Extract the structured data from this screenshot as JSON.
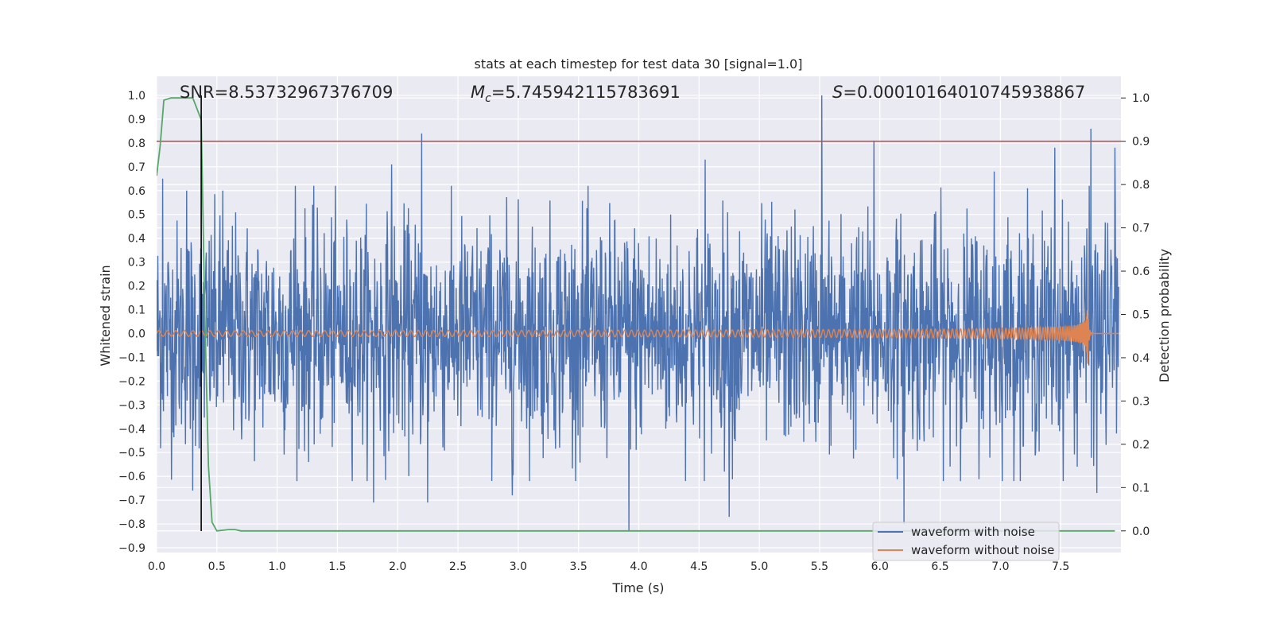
{
  "chart_data": {
    "type": "line",
    "title": "stats at each timestep for test data 30 [signal=1.0]",
    "xlabel": "Time (s)",
    "ylabel_left": "Whitened strain",
    "ylabel_right": "Detection probability",
    "xlim": [
      0.0,
      8.0
    ],
    "ylim_left": [
      -0.92,
      1.08
    ],
    "ylim_right": [
      -0.05,
      1.05
    ],
    "x_ticks": [
      0.0,
      0.5,
      1.0,
      1.5,
      2.0,
      2.5,
      3.0,
      3.5,
      4.0,
      4.5,
      5.0,
      5.5,
      6.0,
      6.5,
      7.0,
      7.5
    ],
    "x_tick_labels": [
      "0.0",
      "0.5",
      "1.0",
      "1.5",
      "2.0",
      "2.5",
      "3.0",
      "3.5",
      "4.0",
      "4.5",
      "5.0",
      "5.5",
      "6.0",
      "6.5",
      "7.0",
      "7.5"
    ],
    "y_ticks_left": [
      -0.9,
      -0.8,
      -0.7,
      -0.6,
      -0.5,
      -0.4,
      -0.3,
      -0.2,
      -0.1,
      0.0,
      0.1,
      0.2,
      0.3,
      0.4,
      0.5,
      0.6,
      0.7,
      0.8,
      0.9,
      1.0
    ],
    "y_tick_labels_left": [
      "−0.9",
      "−0.8",
      "−0.7",
      "−0.6",
      "−0.5",
      "−0.4",
      "−0.3",
      "−0.2",
      "−0.1",
      "0.0",
      "0.1",
      "0.2",
      "0.3",
      "0.4",
      "0.5",
      "0.6",
      "0.7",
      "0.8",
      "0.9",
      "1.0"
    ],
    "y_ticks_right": [
      0.0,
      0.1,
      0.2,
      0.3,
      0.4,
      0.5,
      0.6,
      0.7,
      0.8,
      0.9,
      1.0
    ],
    "y_tick_labels_right": [
      "0.0",
      "0.1",
      "0.2",
      "0.3",
      "0.4",
      "0.5",
      "0.6",
      "0.7",
      "0.8",
      "0.9",
      "1.0"
    ],
    "grid": true,
    "annotations": {
      "snr": "SNR=8.53732967376709",
      "mc_symbol": "M",
      "mc_sub": "c",
      "mc_value": "=5.745942115783691",
      "s_symbol": "S",
      "s_value": "=0.00010164010745938867"
    },
    "series": [
      {
        "name": "waveform with noise",
        "axis": "left",
        "color": "#4c72b0",
        "kind": "noise",
        "typical_amplitude": 0.3,
        "peaks": [
          {
            "x": 0.05,
            "y": 0.65
          },
          {
            "x": 0.25,
            "y": 0.6
          },
          {
            "x": 0.3,
            "y": 0.68
          },
          {
            "x": 0.55,
            "y": 0.6
          },
          {
            "x": 1.15,
            "y": 0.62
          },
          {
            "x": 1.95,
            "y": 0.71
          },
          {
            "x": 2.2,
            "y": 0.84
          },
          {
            "x": 2.25,
            "y": 0.75
          },
          {
            "x": 3.92,
            "y": 0.81
          },
          {
            "x": 4.55,
            "y": 0.73
          },
          {
            "x": 5.52,
            "y": 1.0
          },
          {
            "x": 5.95,
            "y": 0.81
          },
          {
            "x": 6.2,
            "y": 0.82
          },
          {
            "x": 6.95,
            "y": 0.68
          },
          {
            "x": 7.45,
            "y": 0.78
          },
          {
            "x": 7.75,
            "y": 0.86
          },
          {
            "x": 7.95,
            "y": 0.78
          },
          {
            "x": 0.3,
            "y": -0.66
          },
          {
            "x": 1.8,
            "y": -0.71
          },
          {
            "x": 2.25,
            "y": -0.71
          },
          {
            "x": 2.95,
            "y": -0.68
          },
          {
            "x": 3.92,
            "y": -0.83
          },
          {
            "x": 4.75,
            "y": -0.77
          },
          {
            "x": 6.2,
            "y": -0.8
          },
          {
            "x": 7.8,
            "y": -0.67
          }
        ]
      },
      {
        "name": "waveform without noise",
        "axis": "left",
        "color": "#dd8452",
        "kind": "chirp",
        "coalescence_time": 7.72,
        "start_amplitude": 0.012,
        "peak_amplitude": 0.22
      },
      {
        "name": "detection probability",
        "axis": "right",
        "color": "#55a868",
        "x": [
          0.0,
          0.03,
          0.06,
          0.12,
          0.2,
          0.3,
          0.37,
          0.4,
          0.43,
          0.46,
          0.5,
          0.6,
          0.65,
          0.7,
          0.8,
          7.95
        ],
        "y": [
          0.82,
          0.89,
          0.995,
          1.0,
          1.0,
          1.0,
          0.95,
          0.5,
          0.15,
          0.02,
          0.0,
          0.003,
          0.003,
          0.0,
          0.0,
          0.0
        ]
      }
    ],
    "threshold": {
      "axis": "right",
      "value": 0.9,
      "color": "#c44e52"
    },
    "marker_line": {
      "x": 0.37,
      "y_from": -0.83,
      "y_to": 1.0,
      "color": "#000000"
    },
    "legend": {
      "position": "bottom-right",
      "entries": [
        {
          "label": "waveform with noise",
          "color": "#4c72b0"
        },
        {
          "label": "waveform without noise",
          "color": "#dd8452"
        }
      ]
    },
    "plot_background": "#eaeaf2"
  }
}
